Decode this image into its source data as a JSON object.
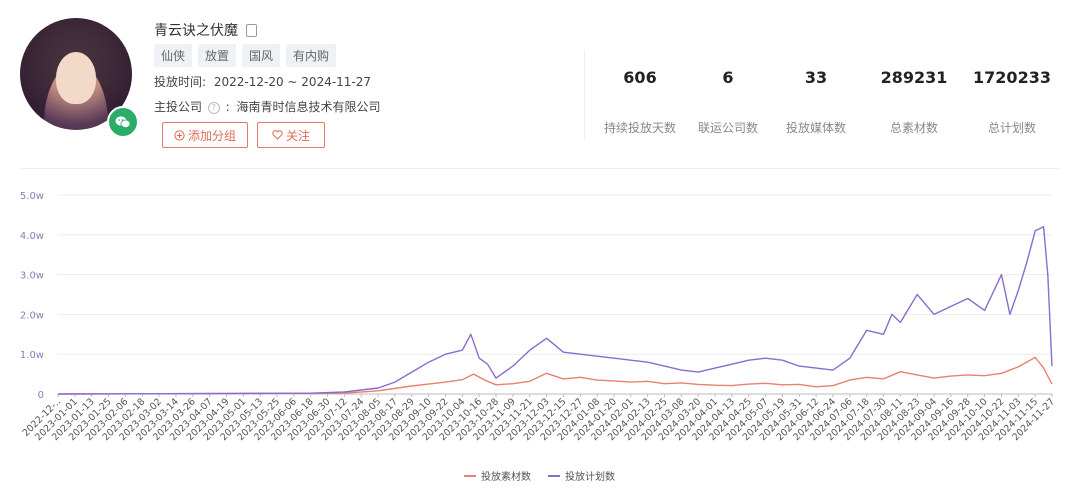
{
  "profile": {
    "name": "青云诀之伏魔",
    "tags": [
      "仙侠",
      "放置",
      "国风",
      "有内购"
    ],
    "date_label": "投放时间:",
    "date_range": "2022-12-20 ~ 2024-11-27",
    "company_label": "主投公司",
    "company_sep": ":",
    "company": "海南青时信息技术有限公司",
    "btn_group": "添加分组",
    "btn_follow": "关注"
  },
  "stats": [
    {
      "value": "606",
      "label": "持续投放天数"
    },
    {
      "value": "6",
      "label": "联运公司数"
    },
    {
      "value": "33",
      "label": "投放媒体数"
    },
    {
      "value": "289231",
      "label": "总素材数"
    },
    {
      "value": "1720233",
      "label": "总计划数"
    }
  ],
  "colors": {
    "materials": "#e8826e",
    "plans": "#8a6cd0",
    "badge": "#2aae67"
  },
  "chart_data": {
    "type": "line",
    "y_ticks": [
      "0",
      "1.0w",
      "2.0w",
      "3.0w",
      "4.0w",
      "5.0w"
    ],
    "ylim": [
      0,
      50000
    ],
    "x_ticks": [
      "2022-12-20",
      "2023-01-01",
      "2023-01-13",
      "2023-01-25",
      "2023-02-06",
      "2023-02-18",
      "2023-03-02",
      "2023-03-14",
      "2023-03-26",
      "2023-04-07",
      "2023-04-19",
      "2023-05-01",
      "2023-05-13",
      "2023-05-25",
      "2023-06-06",
      "2023-06-18",
      "2023-06-30",
      "2023-07-12",
      "2023-07-24",
      "2023-08-05",
      "2023-08-17",
      "2023-08-29",
      "2023-09-10",
      "2023-09-22",
      "2023-10-04",
      "2023-10-16",
      "2023-10-28",
      "2023-11-09",
      "2023-11-21",
      "2023-12-03",
      "2023-12-15",
      "2023-12-27",
      "2024-01-08",
      "2024-01-20",
      "2024-02-01",
      "2024-02-13",
      "2024-02-25",
      "2024-03-08",
      "2024-03-20",
      "2024-04-01",
      "2024-04-13",
      "2024-04-25",
      "2024-05-07",
      "2024-05-19",
      "2024-05-31",
      "2024-06-12",
      "2024-06-24",
      "2024-07-06",
      "2024-07-18",
      "2024-07-30",
      "2024-08-11",
      "2024-08-23",
      "2024-09-04",
      "2024-09-16",
      "2024-09-28",
      "2024-10-10",
      "2024-10-22",
      "2024-11-03",
      "2024-11-15",
      "2024-11-27"
    ],
    "x_tick_labels": [
      "2022-12-..",
      "2023-01-01",
      "2023-01-13",
      "2023-01-25",
      "2023-02-06",
      "2023-02-18",
      "2023-03-02",
      "2023-03-14",
      "2023-03-26",
      "2023-04-07",
      "2023-04-19",
      "2023-05-01",
      "2023-05-13",
      "2023-05-25",
      "2023-06-06",
      "2023-06-18",
      "2023-06-30",
      "2023-07-12",
      "2023-07-24",
      "2023-08-05",
      "2023-08-17",
      "2023-08-29",
      "2023-09-10",
      "2023-09-22",
      "2023-10-04",
      "2023-10-16",
      "2023-10-28",
      "2023-11-09",
      "2023-11-21",
      "2023-12-03",
      "2023-12-15",
      "2023-12-27",
      "2024-01-08",
      "2024-01-20",
      "2024-02-01",
      "2024-02-13",
      "2024-02-25",
      "2024-03-08",
      "2024-03-20",
      "2024-04-01",
      "2024-04-13",
      "2024-04-25",
      "2024-05-07",
      "2024-05-19",
      "2024-05-31",
      "2024-06-12",
      "2024-06-24",
      "2024-07-06",
      "2024-07-18",
      "2024-07-30",
      "2024-08-11",
      "2024-08-23",
      "2024-09-04",
      "2024-09-16",
      "2024-09-28",
      "2024-10-10",
      "2024-10-22",
      "2024-11-03",
      "2024-11-15",
      "2024-11-27"
    ],
    "legend_position": "bottom",
    "series": [
      {
        "name": "投放素材数",
        "color": "#e8826e",
        "x": [
          "2022-12-20",
          "2023-07-12",
          "2023-08-05",
          "2023-08-29",
          "2023-09-22",
          "2023-10-04",
          "2023-10-12",
          "2023-10-20",
          "2023-10-28",
          "2023-11-09",
          "2023-11-21",
          "2023-12-03",
          "2023-12-15",
          "2023-12-27",
          "2024-01-08",
          "2024-01-20",
          "2024-02-01",
          "2024-02-13",
          "2024-02-25",
          "2024-03-08",
          "2024-03-20",
          "2024-04-01",
          "2024-04-13",
          "2024-04-25",
          "2024-05-07",
          "2024-05-19",
          "2024-05-31",
          "2024-06-12",
          "2024-06-24",
          "2024-07-06",
          "2024-07-18",
          "2024-07-30",
          "2024-08-11",
          "2024-08-23",
          "2024-09-04",
          "2024-09-16",
          "2024-09-28",
          "2024-10-10",
          "2024-10-22",
          "2024-11-03",
          "2024-11-15",
          "2024-11-21",
          "2024-11-27"
        ],
        "y": [
          0,
          200,
          800,
          2000,
          3000,
          3600,
          5000,
          3500,
          2300,
          2600,
          3200,
          5200,
          3800,
          4200,
          3500,
          3300,
          3000,
          3200,
          2600,
          2800,
          2400,
          2200,
          2100,
          2500,
          2700,
          2300,
          2400,
          1800,
          2100,
          3500,
          4200,
          3800,
          5600,
          4800,
          4000,
          4500,
          4800,
          4600,
          5200,
          6800,
          9200,
          6500,
          2500
        ]
      },
      {
        "name": "投放计划数",
        "color": "#8a6cd0",
        "x": [
          "2022-12-20",
          "2023-06-18",
          "2023-07-12",
          "2023-08-05",
          "2023-08-17",
          "2023-08-29",
          "2023-09-10",
          "2023-09-22",
          "2023-10-04",
          "2023-10-10",
          "2023-10-16",
          "2023-10-22",
          "2023-10-28",
          "2023-11-09",
          "2023-11-21",
          "2023-12-03",
          "2023-12-15",
          "2023-12-27",
          "2024-01-08",
          "2024-01-20",
          "2024-02-01",
          "2024-02-13",
          "2024-02-25",
          "2024-03-08",
          "2024-03-20",
          "2024-04-01",
          "2024-04-13",
          "2024-04-25",
          "2024-05-07",
          "2024-05-19",
          "2024-05-31",
          "2024-06-12",
          "2024-06-24",
          "2024-07-06",
          "2024-07-18",
          "2024-07-30",
          "2024-08-05",
          "2024-08-11",
          "2024-08-23",
          "2024-09-04",
          "2024-09-16",
          "2024-09-28",
          "2024-10-10",
          "2024-10-22",
          "2024-10-28",
          "2024-11-03",
          "2024-11-09",
          "2024-11-15",
          "2024-11-21",
          "2024-11-24",
          "2024-11-27"
        ],
        "y": [
          0,
          200,
          500,
          1500,
          3000,
          5500,
          8000,
          10000,
          11000,
          15000,
          9000,
          7500,
          4000,
          7000,
          11000,
          14000,
          10500,
          10000,
          9500,
          9000,
          8500,
          8000,
          7000,
          6000,
          5500,
          6500,
          7500,
          8500,
          9000,
          8500,
          7000,
          6500,
          6000,
          9000,
          16000,
          15000,
          20000,
          18000,
          25000,
          20000,
          22000,
          24000,
          21000,
          30000,
          20000,
          26000,
          33000,
          41000,
          42000,
          30000,
          7000
        ]
      }
    ]
  }
}
